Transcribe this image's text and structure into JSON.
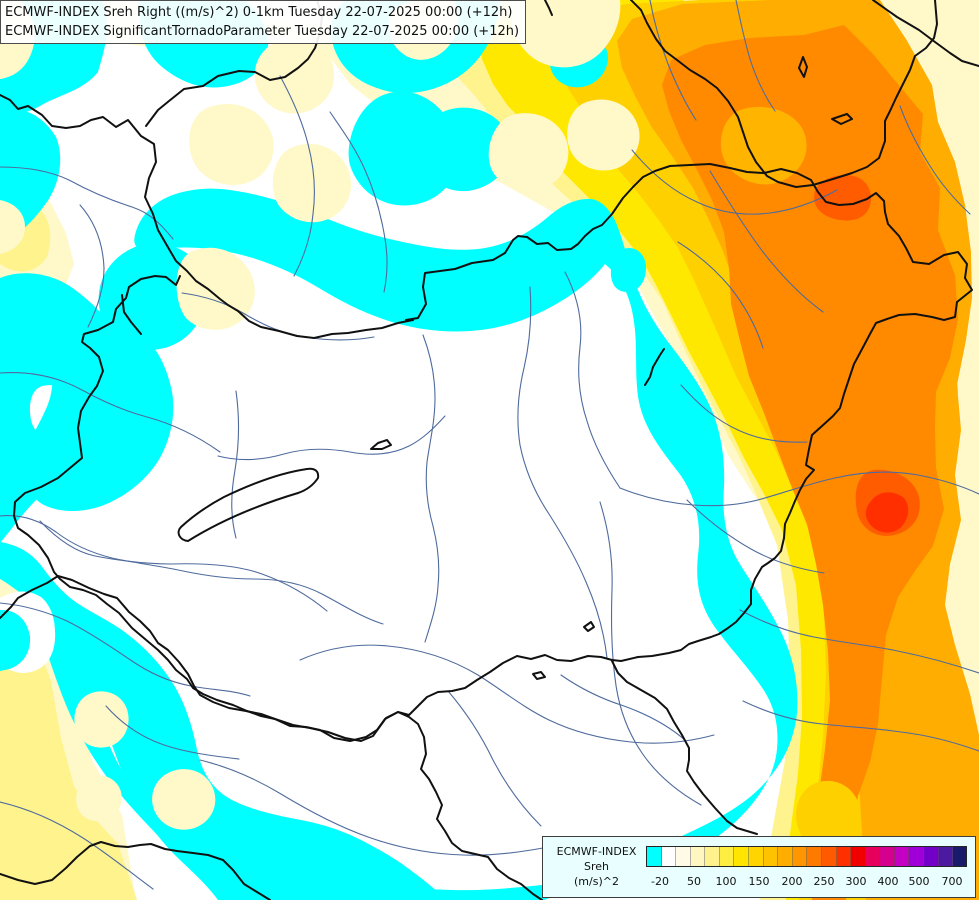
{
  "header": {
    "line1": "ECMWF-INDEX Sreh Right ((m/s)^2) 0-1km Tuesday 22-07-2025 00:00 (+12h)",
    "line2": "ECMWF-INDEX SignificantTornadoParameter Tuesday 22-07-2025 00:00 (+12h)"
  },
  "legend": {
    "title_line1": "ECMWF-INDEX",
    "title_line2": "Sreh",
    "title_line3": "(m/s)^2",
    "tick_labels": [
      "-20",
      "50",
      "100",
      "150",
      "200",
      "250",
      "300",
      "400",
      "500",
      "700"
    ],
    "swatch_colors": [
      "#00ffff",
      "#ffffff",
      "#fffbe6",
      "#fff7bf",
      "#fff28c",
      "#ffee42",
      "#ffe500",
      "#ffd400",
      "#ffc200",
      "#ffae00",
      "#ff9600",
      "#ff7b00",
      "#ff5a00",
      "#ff3000",
      "#f20000",
      "#e6005c",
      "#d6008f",
      "#c400c4",
      "#a000d8",
      "#7300c9",
      "#4b1aa1",
      "#1a1a6b"
    ]
  },
  "map": {
    "colors": {
      "cyan": "#00ffff",
      "white": "#ffffff",
      "paleYellow": "#fff8c8",
      "lightYellow": "#fff38e",
      "yellow": "#ffe800",
      "gold": "#ffd000",
      "orange": "#ffad00",
      "deepOrange": "#ff8a00",
      "redOrange": "#ff5c00",
      "border": "#111111",
      "river": "#4f6b9d"
    }
  }
}
